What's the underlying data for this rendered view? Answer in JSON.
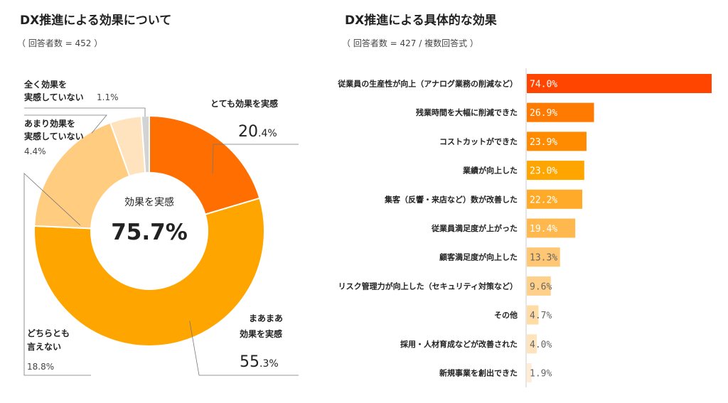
{
  "left": {
    "title": "DX推進による効果について",
    "subtitle": "（ 回答者数 = 452 ）"
  },
  "right": {
    "title": "DX推進による具体的な効果",
    "subtitle": "（ 回答者数 = 427 / 複数回答式 ）"
  },
  "chart_data": [
    {
      "type": "pie",
      "title": "DX推進による効果について",
      "center_label": "効果を実感",
      "center_value": "75.7%",
      "slices": [
        {
          "label_lines": [
            "とても効果を実感"
          ],
          "value": 20.4,
          "value_main": "20",
          "value_dec": ".4%",
          "color": "#FF6E00"
        },
        {
          "label_lines": [
            "まあまあ",
            "効果を実感"
          ],
          "value": 55.3,
          "value_main": "55",
          "value_dec": ".3%",
          "color": "#FFA500"
        },
        {
          "label_lines": [
            "どちらとも",
            "言えない"
          ],
          "value": 18.8,
          "value_text": "18.8%",
          "color": "#FFCC80"
        },
        {
          "label_lines": [
            "あまり効果を",
            "実感していない"
          ],
          "value": 4.4,
          "value_text": "4.4%",
          "color": "#FFE3BF"
        },
        {
          "label_lines": [
            "全く効果を",
            "実感していない"
          ],
          "value": 1.1,
          "value_text": "1.1%",
          "color": "#D3D3D3"
        }
      ]
    },
    {
      "type": "bar",
      "orientation": "horizontal",
      "title": "DX推進による具体的な効果",
      "categories": [
        "従業員の生産性が向上（アナログ業務の削減など）",
        "残業時間を大幅に削減できた",
        "コストカットができた",
        "業績が向上した",
        "集客（反響・来店など）数が改善した",
        "従業員満足度が上がった",
        "顧客満足度が向上した",
        "リスク管理力が向上した（セキュリティ対策など）",
        "その他",
        "採用・人材育成などが改善された",
        "新規事業を創出できた"
      ],
      "values": [
        74.0,
        26.9,
        23.9,
        23.0,
        22.2,
        19.4,
        13.3,
        9.6,
        4.7,
        4.0,
        1.9
      ],
      "value_labels": [
        "74.0%",
        "26.9%",
        "23.9%",
        "23.0%",
        "22.2%",
        "19.4%",
        "13.3%",
        "9.6%",
        "4.7%",
        "4.0%",
        "1.9%"
      ],
      "colors": [
        "#FF4500",
        "#FF7A00",
        "#FF8C00",
        "#FFA500",
        "#FFAA28",
        "#FFB84D",
        "#FFC773",
        "#FFD08A",
        "#FFDBA5",
        "#FFE3BD",
        "#FFECD5"
      ]
    }
  ]
}
